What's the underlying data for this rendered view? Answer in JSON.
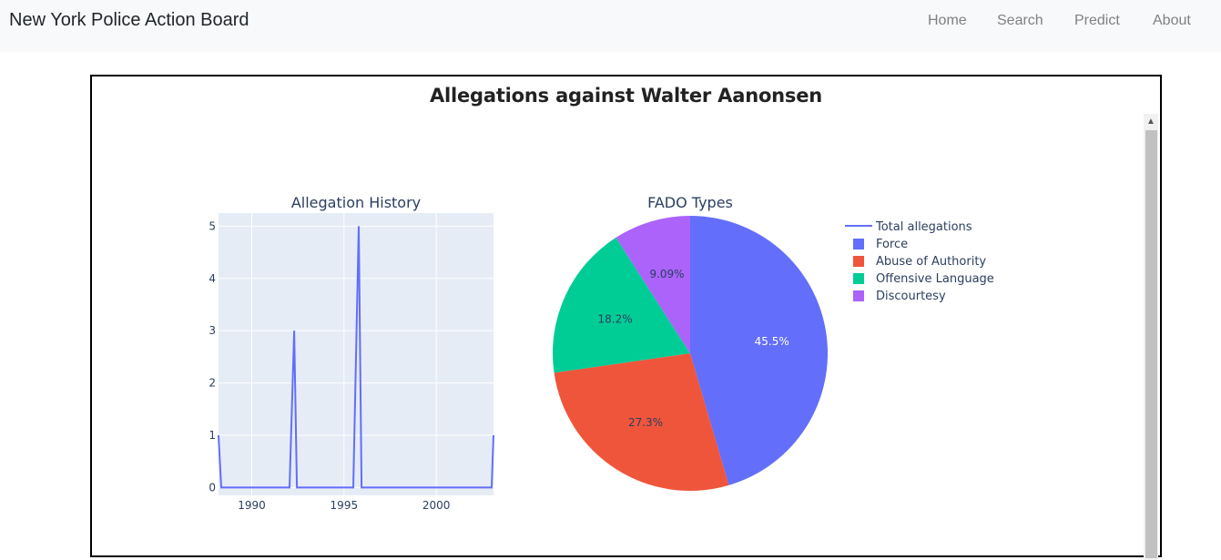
{
  "navbar": {
    "brand": "New York Police Action Board",
    "links": [
      "Home",
      "Search",
      "Predict",
      "About"
    ]
  },
  "panel": {
    "title": "Allegations against Walter Aanonsen"
  },
  "colors": {
    "line": "#636efa",
    "force": "#636efa",
    "abuse": "#ef553b",
    "offensive": "#00cc96",
    "discourtesy": "#ab63fa",
    "plot_bg": "#e5ecf6"
  },
  "chart_data": [
    {
      "type": "line",
      "title": "Allegation History",
      "xlabel": "",
      "ylabel": "",
      "x_ticks": [
        1990,
        1995,
        2000
      ],
      "y_ticks": [
        0,
        1,
        2,
        3,
        4,
        5
      ],
      "xlim": [
        1988.2,
        2003.1
      ],
      "ylim": [
        -0.15,
        5.25
      ],
      "grid": true,
      "series": [
        {
          "name": "Total allegations",
          "x": [
            1988.2,
            1988.35,
            1992.05,
            1992.3,
            1992.45,
            1995.5,
            1995.8,
            1995.95,
            2003.0,
            2003.1
          ],
          "y": [
            1,
            0,
            0,
            3,
            0,
            0,
            5,
            0,
            0,
            1
          ]
        }
      ]
    },
    {
      "type": "pie",
      "title": "FADO Types",
      "labels": [
        "Force",
        "Abuse of Authority",
        "Offensive Language",
        "Discourtesy"
      ],
      "percent_labels": [
        "45.5%",
        "27.3%",
        "18.2%",
        "9.09%"
      ],
      "values": [
        45.5,
        27.3,
        18.2,
        9.09
      ]
    }
  ],
  "legend": {
    "placement": "right",
    "items": [
      "Total allegations",
      "Force",
      "Abuse of Authority",
      "Offensive Language",
      "Discourtesy"
    ]
  },
  "scrollbar": {
    "up_arrow": "▲"
  }
}
